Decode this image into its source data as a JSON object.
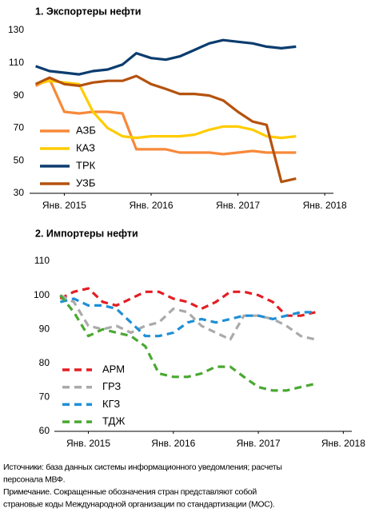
{
  "chart_data": [
    {
      "type": "line",
      "title": "1. Экспортеры нефти",
      "x": [
        2014.67,
        2014.83,
        2015,
        2015.17,
        2015.33,
        2015.5,
        2015.67,
        2015.83,
        2016,
        2016.17,
        2016.33,
        2016.5,
        2016.67,
        2016.83,
        2017,
        2017.17,
        2017.33,
        2017.5,
        2017.67
      ],
      "xlim": [
        2014.6,
        2018.1
      ],
      "xticks": [
        {
          "value": 2015,
          "label": "Янв. 2015"
        },
        {
          "value": 2016,
          "label": "Янв. 2016"
        },
        {
          "value": 2017,
          "label": "Янв. 2017"
        },
        {
          "value": 2018,
          "label": "Янв. 2018"
        }
      ],
      "ylim": [
        30,
        130
      ],
      "yticks": [
        30,
        50,
        70,
        90,
        110,
        130
      ],
      "legend": "lower left",
      "dashed": false,
      "series": [
        {
          "name": "АЗБ",
          "color": "#f7893a",
          "values": [
            96,
            100,
            80,
            79,
            80,
            80,
            79,
            57,
            57,
            57,
            55,
            55,
            55,
            54,
            55,
            56,
            55,
            55,
            55
          ]
        },
        {
          "name": "КАЗ",
          "color": "#ffcc00",
          "values": [
            97,
            99,
            98,
            97,
            80,
            70,
            65,
            64,
            65,
            65,
            65,
            66,
            69,
            71,
            71,
            69,
            65,
            64,
            65
          ]
        },
        {
          "name": "ТРК",
          "color": "#0b3c6e",
          "values": [
            108,
            105,
            104,
            103,
            105,
            106,
            109,
            116,
            113,
            112,
            114,
            118,
            122,
            124,
            123,
            122,
            120,
            119,
            120
          ]
        },
        {
          "name": "УЗБ",
          "color": "#b5520e",
          "values": [
            97,
            101,
            97,
            96,
            98,
            99,
            99,
            102,
            97,
            94,
            91,
            91,
            90,
            87,
            80,
            74,
            72,
            37,
            39
          ]
        }
      ]
    },
    {
      "type": "line",
      "title": "2. Импортеры нефти",
      "x": [
        2014.67,
        2014.83,
        2015,
        2015.17,
        2015.33,
        2015.5,
        2015.67,
        2015.83,
        2016,
        2016.17,
        2016.33,
        2016.5,
        2016.67,
        2016.83,
        2017,
        2017.17,
        2017.33,
        2017.5,
        2017.67
      ],
      "xlim": [
        2014.6,
        2018.1
      ],
      "xticks": [
        {
          "value": 2015,
          "label": "Янв. 2015"
        },
        {
          "value": 2016,
          "label": "Янв. 2016"
        },
        {
          "value": 2017,
          "label": "Янв. 2017"
        },
        {
          "value": 2018,
          "label": "Янв. 2018"
        }
      ],
      "ylim": [
        60,
        110
      ],
      "yticks": [
        60,
        70,
        80,
        90,
        100,
        110
      ],
      "legend": "lower left",
      "dashed": true,
      "series": [
        {
          "name": "АРМ",
          "color": "#e31e24",
          "values": [
            99,
            101,
            102,
            98,
            97,
            99,
            101,
            101,
            99,
            98,
            96,
            98,
            101,
            101,
            100,
            98,
            94,
            94,
            95
          ]
        },
        {
          "name": "ГРЗ",
          "color": "#aaaaaa",
          "values": [
            100,
            98,
            91,
            90,
            91,
            89,
            91,
            92,
            96,
            95,
            91,
            89,
            87,
            94,
            94,
            93,
            91,
            88,
            87
          ]
        },
        {
          "name": "КГЗ",
          "color": "#1e8fd6",
          "values": [
            98,
            99,
            97,
            97,
            96,
            92,
            88,
            88,
            89,
            92,
            93,
            92,
            93,
            94,
            94,
            93,
            94,
            95,
            95
          ]
        },
        {
          "name": "ТДЖ",
          "color": "#4aa832",
          "values": [
            100,
            95,
            88,
            90,
            89,
            88,
            85,
            77,
            76,
            76,
            77,
            79,
            79,
            76,
            73,
            72,
            72,
            73,
            74
          ]
        }
      ]
    }
  ],
  "notes": [
    "Источники: база данных системы информационного уведомления; расчеты",
    "персонала МВФ.",
    "Примечание. Сокращенные обозначения стран представляют собой",
    "страновые коды Международной организации по стандартизации (МОС)."
  ]
}
